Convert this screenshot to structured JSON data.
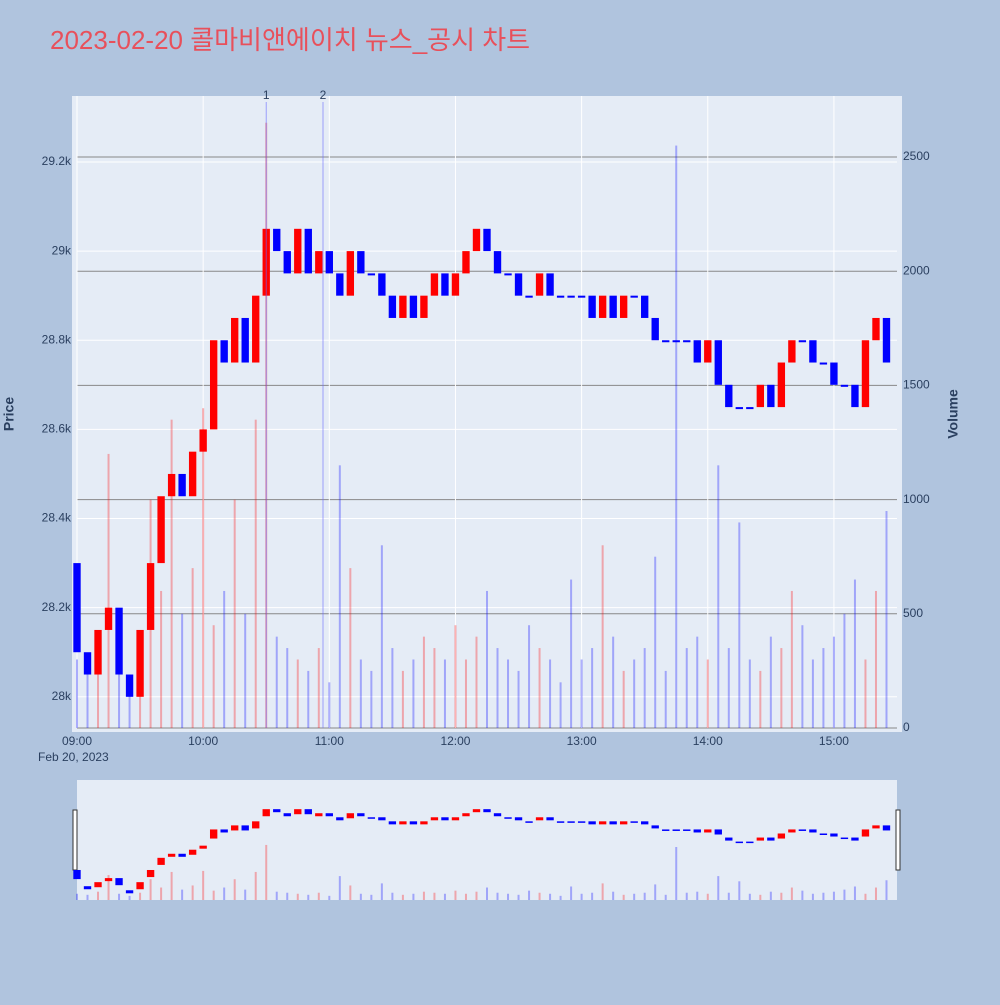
{
  "chart_data": {
    "type": "candlestick",
    "title": "2023-02-20 콜마비앤에이치 뉴스_공시 차트",
    "y_label": "Price",
    "y2_label": "Volume",
    "x_date_label": "Feb 20, 2023",
    "up_color": "#ff0000",
    "down_color": "#0000ff",
    "x": [
      "09:00",
      "09:05",
      "09:10",
      "09:15",
      "09:20",
      "09:25",
      "09:30",
      "09:35",
      "09:40",
      "09:45",
      "09:50",
      "09:55",
      "10:00",
      "10:05",
      "10:10",
      "10:15",
      "10:20",
      "10:25",
      "10:30",
      "10:35",
      "10:40",
      "10:45",
      "10:50",
      "10:55",
      "11:00",
      "11:05",
      "11:10",
      "11:15",
      "11:20",
      "11:25",
      "11:30",
      "11:35",
      "11:40",
      "11:45",
      "11:50",
      "11:55",
      "12:00",
      "12:05",
      "12:10",
      "12:15",
      "12:20",
      "12:25",
      "12:30",
      "12:35",
      "12:40",
      "12:45",
      "12:50",
      "12:55",
      "13:00",
      "13:05",
      "13:10",
      "13:15",
      "13:20",
      "13:25",
      "13:30",
      "13:35",
      "13:40",
      "13:45",
      "13:50",
      "13:55",
      "14:00",
      "14:05",
      "14:10",
      "14:15",
      "14:20",
      "14:25",
      "14:30",
      "14:35",
      "14:40",
      "14:45",
      "14:50",
      "14:55",
      "15:00",
      "15:05",
      "15:10",
      "15:15",
      "15:20",
      "15:25"
    ],
    "open": [
      28300,
      28100,
      28050,
      28150,
      28200,
      28050,
      28000,
      28150,
      28300,
      28450,
      28500,
      28450,
      28550,
      28600,
      28800,
      28750,
      28850,
      28750,
      28900,
      29050,
      29000,
      28950,
      29050,
      28950,
      29000,
      28950,
      28900,
      29000,
      28950,
      28950,
      28900,
      28850,
      28900,
      28850,
      28900,
      28950,
      28900,
      28950,
      29000,
      29050,
      29000,
      28950,
      28950,
      28900,
      28900,
      28950,
      28900,
      28900,
      28900,
      28900,
      28850,
      28900,
      28850,
      28900,
      28900,
      28850,
      28800,
      28800,
      28800,
      28800,
      28750,
      28800,
      28700,
      28650,
      28650,
      28650,
      28700,
      28650,
      28750,
      28800,
      28800,
      28750,
      28750,
      28700,
      28700,
      28650,
      28800,
      28850
    ],
    "close": [
      28100,
      28050,
      28150,
      28200,
      28050,
      28000,
      28150,
      28300,
      28450,
      28500,
      28450,
      28550,
      28600,
      28800,
      28750,
      28850,
      28750,
      28900,
      29050,
      29000,
      28950,
      29050,
      28950,
      29000,
      28950,
      28900,
      29000,
      28950,
      28950,
      28900,
      28850,
      28900,
      28850,
      28900,
      28950,
      28900,
      28950,
      29000,
      29050,
      29000,
      28950,
      28950,
      28900,
      28900,
      28950,
      28900,
      28900,
      28900,
      28900,
      28850,
      28900,
      28850,
      28900,
      28900,
      28850,
      28800,
      28800,
      28800,
      28800,
      28750,
      28800,
      28700,
      28650,
      28650,
      28650,
      28700,
      28650,
      28750,
      28800,
      28800,
      28750,
      28750,
      28700,
      28700,
      28650,
      28800,
      28850,
      28750
    ],
    "volume": [
      300,
      250,
      400,
      1200,
      300,
      200,
      350,
      1000,
      600,
      1350,
      500,
      700,
      1400,
      450,
      600,
      1000,
      500,
      1350,
      2650,
      400,
      350,
      300,
      250,
      350,
      200,
      1150,
      700,
      300,
      250,
      800,
      350,
      250,
      300,
      400,
      350,
      300,
      450,
      300,
      400,
      600,
      350,
      300,
      250,
      450,
      350,
      300,
      200,
      650,
      300,
      350,
      800,
      400,
      250,
      300,
      350,
      750,
      250,
      2550,
      350,
      400,
      300,
      1150,
      350,
      900,
      300,
      250,
      400,
      350,
      600,
      450,
      300,
      350,
      400,
      500,
      650,
      300,
      600,
      950
    ],
    "xlim": [
      "09:00",
      "15:30"
    ],
    "xticks": [
      "09:00",
      "10:00",
      "11:00",
      "12:00",
      "13:00",
      "14:00",
      "15:00"
    ],
    "ylim": [
      27930,
      29348
    ],
    "yticks": [
      {
        "value": 28000,
        "label": "28k"
      },
      {
        "value": 28200,
        "label": "28.2k"
      },
      {
        "value": 28400,
        "label": "28.4k"
      },
      {
        "value": 28600,
        "label": "28.6k"
      },
      {
        "value": 28800,
        "label": "28.8k"
      },
      {
        "value": 29000,
        "label": "29k"
      },
      {
        "value": 29200,
        "label": "29.2k"
      }
    ],
    "y2lim": [
      0,
      2767
    ],
    "y2ticks": [
      0,
      500,
      1000,
      1500,
      2000,
      2500
    ],
    "annotations": [
      {
        "x": "10:30",
        "text": "1"
      },
      {
        "x": "10:57",
        "text": "2"
      }
    ]
  }
}
